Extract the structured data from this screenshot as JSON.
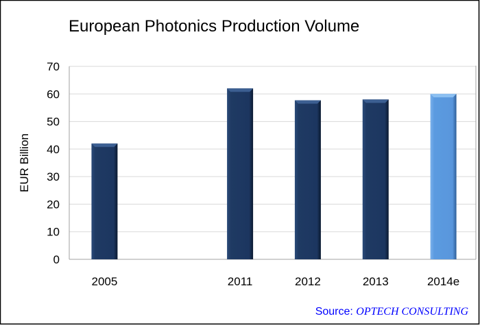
{
  "chart_data": {
    "type": "bar",
    "title": "European Photonics Production Volume",
    "xlabel": "",
    "ylabel": "EUR Billion",
    "categories": [
      "2005",
      "",
      "2011",
      "2012",
      "2013",
      "2014e"
    ],
    "values": [
      42,
      null,
      62,
      57.7,
      58,
      60
    ],
    "ylim": [
      0,
      70
    ],
    "yticks": [
      0,
      10,
      20,
      30,
      40,
      50,
      60,
      70
    ],
    "grid": true,
    "legend": "none",
    "bar_colors": [
      "#1f3a63",
      null,
      "#1f3a63",
      "#1f3a63",
      "#1f3a63",
      "#5b9be0"
    ]
  },
  "source": {
    "prefix": "Source: ",
    "name": "OPTECH CONSULTING",
    "color": "#0000ff"
  }
}
